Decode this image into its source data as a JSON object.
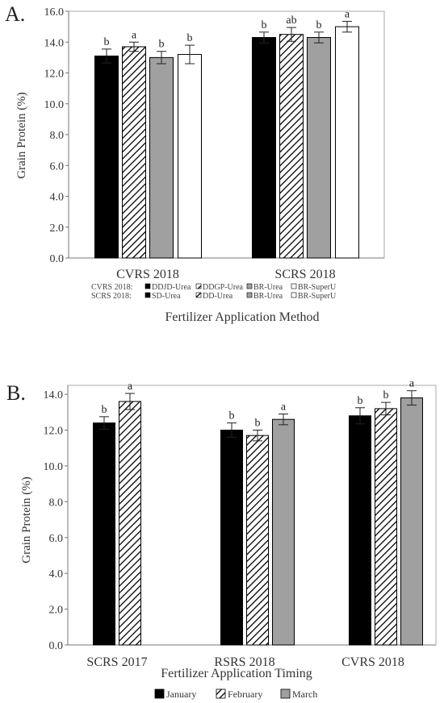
{
  "chart_data": [
    {
      "type": "bar",
      "panel_label": "A.",
      "categories": [
        "CVRS 2018",
        "SCRS 2018"
      ],
      "series": [
        {
          "name": "DDJD-Urea",
          "values": [
            13.1,
            14.3
          ],
          "errors": [
            0.45,
            0.35
          ],
          "letters": [
            "b",
            "b"
          ]
        },
        {
          "name": "DDGP-Urea",
          "values": [
            13.7,
            14.5
          ],
          "errors": [
            0.3,
            0.45
          ],
          "letters": [
            "a",
            "ab"
          ]
        },
        {
          "name": "BR-Urea",
          "values": [
            13.0,
            14.3
          ],
          "errors": [
            0.4,
            0.35
          ],
          "letters": [
            "b",
            "b"
          ]
        },
        {
          "name": "BR-SuperU",
          "values": [
            13.2,
            15.0
          ],
          "errors": [
            0.6,
            0.35
          ],
          "letters": [
            "b",
            "a"
          ]
        }
      ],
      "legend_rows": [
        {
          "label": "CVRS 2018:",
          "items": [
            "DDJD-Urea",
            "DDGP-Urea",
            "BR-Urea",
            "BR-SuperU"
          ]
        },
        {
          "label": "SCRS 2018:",
          "items": [
            "SD-Urea",
            "DD-Urea",
            "BR-Urea",
            "BR-SuperU"
          ]
        }
      ],
      "xlabel": "Fertilizer Application Method",
      "ylabel": "Grain Protein (%)",
      "ylim": [
        0,
        16
      ],
      "yticks": [
        "0.0",
        "2.0",
        "4.0",
        "6.0",
        "8.0",
        "10.0",
        "12.0",
        "14.0",
        "16.0"
      ],
      "grid": false,
      "legend_position": "bottom"
    },
    {
      "type": "bar",
      "panel_label": "B.",
      "categories": [
        "SCRS 2017",
        "RSRS 2018",
        "CVRS 2018"
      ],
      "series": [
        {
          "name": "January",
          "values": [
            12.4,
            12.0,
            12.8
          ],
          "errors": [
            0.35,
            0.4,
            0.45
          ],
          "letters": [
            "b",
            "b",
            "b"
          ]
        },
        {
          "name": "February",
          "values": [
            13.6,
            11.7,
            13.2
          ],
          "errors": [
            0.45,
            0.3,
            0.35
          ],
          "letters": [
            "a",
            "b",
            "b"
          ]
        },
        {
          "name": "March",
          "values": [
            null,
            12.6,
            13.8
          ],
          "errors": [
            null,
            0.3,
            0.4
          ],
          "letters": [
            "",
            "a",
            "a"
          ]
        }
      ],
      "xlabel": "Fertilizer Application Timing",
      "ylabel": "Grain Protein (%)",
      "ylim": [
        0,
        14.5
      ],
      "yticks": [
        "0.0",
        "2.0",
        "4.0",
        "6.0",
        "8.0",
        "10.0",
        "12.0",
        "14.0"
      ],
      "grid": false,
      "legend_position": "bottom"
    }
  ],
  "colors": {
    "solid": "#000000",
    "grey": "#a0a0a0",
    "white": "#ffffff",
    "axis": "#777777"
  }
}
